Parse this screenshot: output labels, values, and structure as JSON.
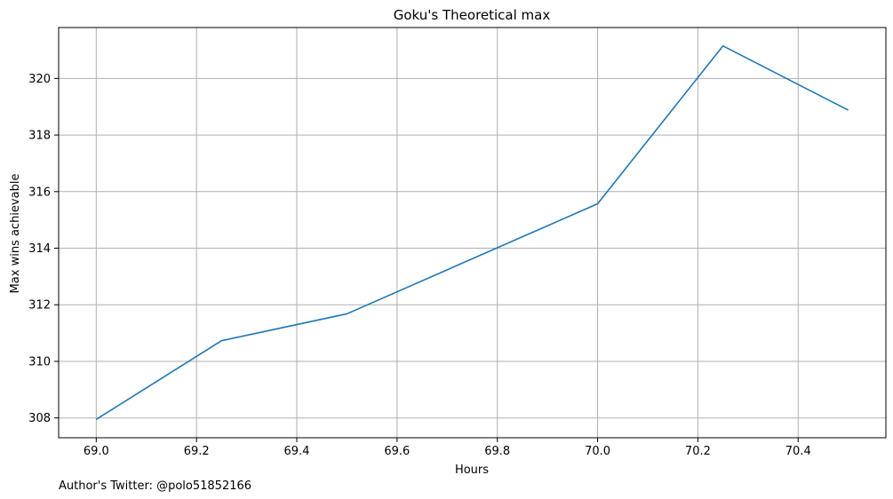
{
  "chart_data": {
    "type": "line",
    "title": "Goku's Theoretical max",
    "xlabel": "Hours",
    "ylabel": "Max wins achievable",
    "x": [
      69.0,
      69.25,
      69.5,
      70.0,
      70.25,
      70.5
    ],
    "series": [
      {
        "values": [
          307.95,
          310.73,
          311.68,
          315.57,
          321.15,
          318.88
        ]
      }
    ],
    "xlim": [
      68.925,
      70.575
    ],
    "ylim": [
      307.3,
      321.8
    ],
    "xticks": [
      69.0,
      69.2,
      69.4,
      69.6,
      69.8,
      70.0,
      70.2,
      70.4
    ],
    "xtick_labels": [
      "69.0",
      "69.2",
      "69.4",
      "69.6",
      "69.8",
      "70.0",
      "70.2",
      "70.4"
    ],
    "yticks": [
      308,
      310,
      312,
      314,
      316,
      318,
      320
    ],
    "ytick_labels": [
      "308",
      "310",
      "312",
      "314",
      "316",
      "318",
      "320"
    ],
    "grid": true,
    "line_color": "#1f77b4",
    "grid_color": "#b0b0b0"
  },
  "footnote": "Author's Twitter: @polo51852166"
}
